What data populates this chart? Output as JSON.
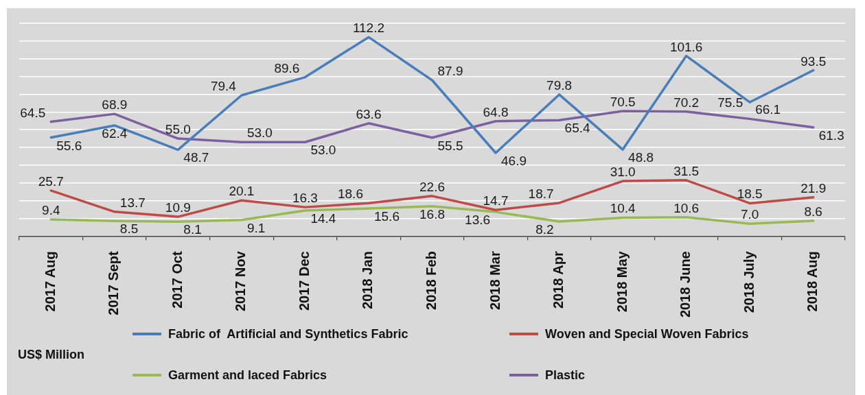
{
  "chart_data": {
    "type": "line",
    "categories": [
      "2017 Aug",
      "2017 Sept",
      "2017 Oct",
      "2017 Nov",
      "2017 Dec",
      "2018 Jan",
      "2018 Feb",
      "2018 Mar",
      "2018 Apr",
      "2018 May",
      "2018 June",
      "2018 July",
      "2018 Aug"
    ],
    "series": [
      {
        "name": "Fabric of  Artificial and Synthetics Fabric",
        "color": "#4a7ebb",
        "values": [
          55.6,
          62.4,
          48.7,
          79.4,
          89.6,
          112.2,
          87.9,
          46.9,
          79.8,
          48.8,
          101.6,
          75.5,
          93.5
        ],
        "value_labels": [
          "55.6",
          "62.4",
          "48.7",
          "79.4",
          "89.6",
          "112.2",
          "87.9",
          "46.9",
          "79.8",
          "48.8",
          "101.6",
          "75.5",
          "93.5"
        ]
      },
      {
        "name": "Woven and Special Woven Fabrics",
        "color": "#be4b48",
        "values": [
          25.7,
          13.7,
          10.9,
          20.1,
          16.3,
          18.6,
          22.6,
          14.7,
          18.7,
          31.0,
          31.5,
          18.5,
          21.9
        ],
        "value_labels": [
          "25.7",
          "13.7",
          "10.9",
          "20.1",
          "16.3",
          "18.6",
          "22.6",
          "14.7",
          "18.7",
          "31.0",
          "31.5",
          "18.5",
          "21.9"
        ]
      },
      {
        "name": "Garment and laced Fabrics",
        "color": "#98b954",
        "values": [
          9.4,
          8.5,
          8.1,
          9.1,
          14.4,
          15.6,
          16.8,
          13.6,
          8.2,
          10.4,
          10.6,
          7.0,
          8.6
        ],
        "value_labels": [
          "9.4",
          "8.5",
          "8.1",
          "9.1",
          "14.4",
          "15.6",
          "16.8",
          "13.6",
          "8.2",
          "10.4",
          "10.6",
          "7.0",
          "8.6"
        ]
      },
      {
        "name": "Plastic",
        "color": "#7d60a0",
        "values": [
          64.5,
          68.9,
          55.0,
          53.0,
          53.0,
          63.6,
          55.5,
          64.8,
          65.4,
          70.5,
          70.2,
          66.1,
          61.3
        ],
        "value_labels": [
          "64.5",
          "68.9",
          "55.0",
          "53.0",
          "53.0",
          "63.6",
          "55.5",
          "64.8",
          "65.4",
          "70.5",
          "70.2",
          "66.1",
          "61.3"
        ]
      }
    ],
    "annotations": [
      "US$ Million"
    ],
    "ylim": [
      0,
      120
    ],
    "yticks": [
      {
        "value": 0,
        "label": null
      },
      {
        "value": 10,
        "label": null
      },
      {
        "value": 20,
        "label": null
      },
      {
        "value": 30,
        "label": null
      },
      {
        "value": 40,
        "label": null
      },
      {
        "value": 50,
        "label": null
      },
      {
        "value": 60,
        "label": null
      },
      {
        "value": 70,
        "label": null
      },
      {
        "value": 80,
        "label": null
      },
      {
        "value": 90,
        "label": null
      },
      {
        "value": 100,
        "label": null
      },
      {
        "value": 110,
        "label": null
      },
      {
        "value": 120,
        "label": null
      }
    ],
    "grid": "y",
    "legend": "bottom",
    "tick_labels": "x",
    "marker": "none",
    "line_style": "solid"
  }
}
